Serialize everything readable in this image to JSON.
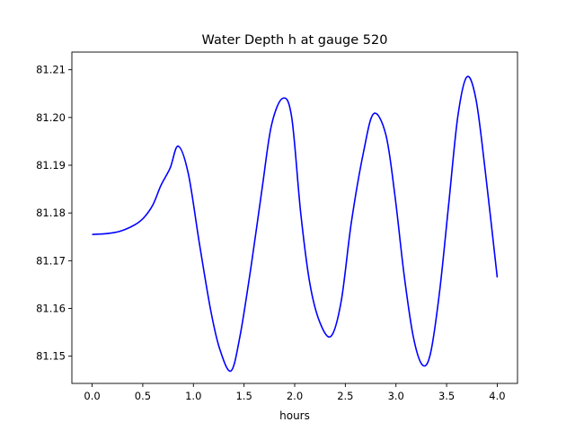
{
  "chart_data": {
    "type": "line",
    "title": "Water Depth h at gauge 520",
    "xlabel": "hours",
    "ylabel": "",
    "xlim": [
      -0.2,
      4.2
    ],
    "ylim": [
      81.1443,
      81.2137
    ],
    "xticks": [
      0.0,
      0.5,
      1.0,
      1.5,
      2.0,
      2.5,
      3.0,
      3.5,
      4.0
    ],
    "xtick_labels": [
      "0.0",
      "0.5",
      "1.0",
      "1.5",
      "2.0",
      "2.5",
      "3.0",
      "3.5",
      "4.0"
    ],
    "yticks": [
      81.15,
      81.16,
      81.17,
      81.18,
      81.19,
      81.2,
      81.21
    ],
    "ytick_labels": [
      "81.15",
      "81.16",
      "81.17",
      "81.18",
      "81.19",
      "81.20",
      "81.21"
    ],
    "grid": false,
    "series": [
      {
        "name": "h",
        "color": "#0000ff",
        "x": [
          0,
          0.15,
          0.28,
          0.42,
          0.51,
          0.6,
          0.68,
          0.77,
          0.85,
          0.95,
          1.06,
          1.17,
          1.26,
          1.37,
          1.46,
          1.57,
          1.68,
          1.77,
          1.88,
          1.97,
          2.06,
          2.15,
          2.25,
          2.36,
          2.46,
          2.56,
          2.68,
          2.78,
          2.9,
          2.99,
          3.08,
          3.17,
          3.26,
          3.34,
          3.43,
          3.52,
          3.61,
          3.7,
          3.79,
          3.88,
          4.0
        ],
        "y": [
          81.1755,
          81.1757,
          81.1762,
          81.1775,
          81.179,
          81.1817,
          81.1858,
          81.1894,
          81.194,
          81.1882,
          81.1735,
          81.1597,
          81.1515,
          81.1469,
          81.1542,
          81.1689,
          81.1854,
          81.1983,
          81.204,
          81.2001,
          81.1799,
          81.1652,
          81.157,
          81.1542,
          81.1616,
          81.1781,
          81.1928,
          81.2008,
          81.1964,
          81.1836,
          81.1671,
          81.1542,
          81.1482,
          81.1505,
          81.1634,
          81.1817,
          81.2001,
          81.2085,
          81.2038,
          81.1891,
          81.1665
        ]
      }
    ]
  }
}
